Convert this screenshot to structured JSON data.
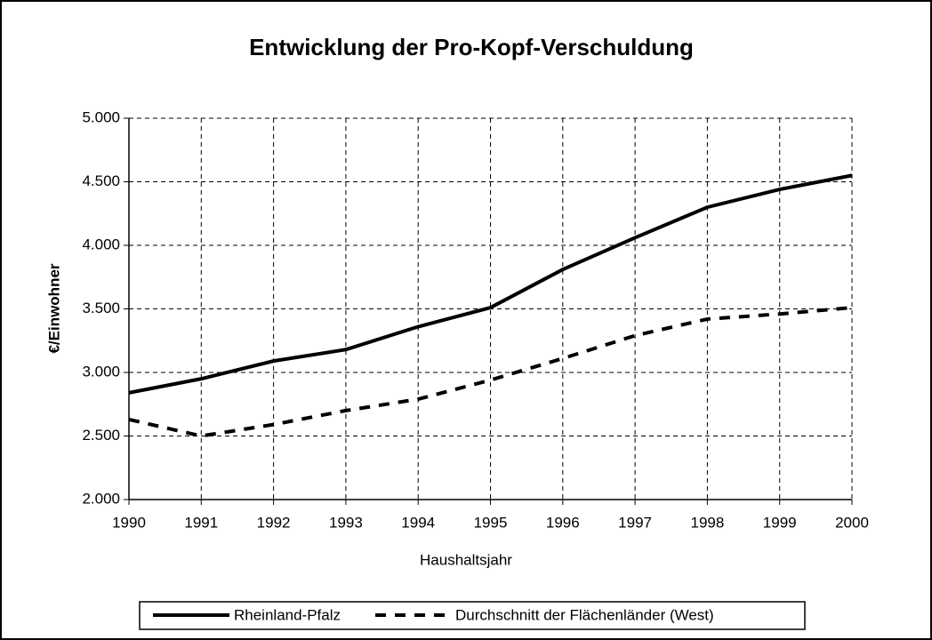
{
  "chart_data": {
    "type": "line",
    "title": "Entwicklung der Pro-Kopf-Verschuldung",
    "xlabel": "Haushaltsjahr",
    "ylabel": "€/Einwohner",
    "x": [
      1990,
      1991,
      1992,
      1993,
      1994,
      1995,
      1996,
      1997,
      1998,
      1999,
      2000
    ],
    "series": [
      {
        "name": "Rheinland-Pfalz",
        "color": "#000000",
        "linestyle": "solid",
        "values": [
          2840,
          2950,
          3090,
          3180,
          3360,
          3510,
          3810,
          4060,
          4300,
          4440,
          4550
        ]
      },
      {
        "name": "Durchschnitt der Flächenländer (West)",
        "color": "#000000",
        "linestyle": "dashed",
        "values": [
          2630,
          2500,
          2590,
          2700,
          2790,
          2940,
          3110,
          3290,
          3420,
          3460,
          3510
        ]
      }
    ],
    "xlim": [
      1990,
      2000
    ],
    "xticks": [
      1990,
      1991,
      1992,
      1993,
      1994,
      1995,
      1996,
      1997,
      1998,
      1999,
      2000
    ],
    "ylim": [
      2000,
      5000
    ],
    "yticks": [
      {
        "value": 2000,
        "label": "2.000"
      },
      {
        "value": 2500,
        "label": "2.500"
      },
      {
        "value": 3000,
        "label": "3.000"
      },
      {
        "value": 3500,
        "label": "3.500"
      },
      {
        "value": 4000,
        "label": "4.000"
      },
      {
        "value": 4500,
        "label": "4.500"
      },
      {
        "value": 5000,
        "label": "5.000"
      }
    ],
    "grid": true,
    "legend": "bottom"
  }
}
